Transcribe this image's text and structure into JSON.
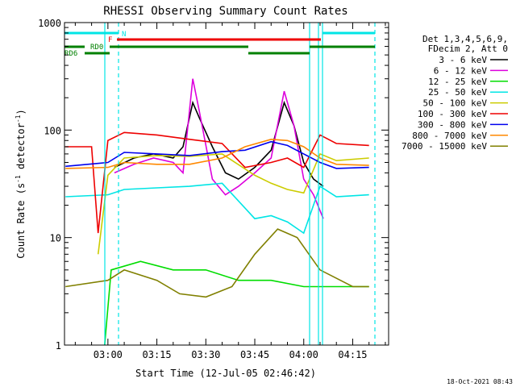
{
  "chart_data": {
    "type": "line",
    "title": "RHESSI Observing Summary Count Rates",
    "xlabel": "Start Time (12-Jul-05 02:46:42)",
    "ylabel_parts": [
      "Count Rate (s",
      "-1",
      " detector",
      "-1",
      ")"
    ],
    "yscale": "log",
    "ylim": [
      1,
      1000
    ],
    "xlim": [
      "02:46:42",
      "04:26:00"
    ],
    "y_ticks": [
      "1",
      "10",
      "100",
      "1000"
    ],
    "x_ticks": [
      "03:00",
      "03:15",
      "03:30",
      "03:45",
      "04:00",
      "04:15"
    ],
    "grid": false,
    "legend_position": "right",
    "legend_header": [
      "Det 1,3,4,5,6,9,",
      "FDecim 2, Att 0"
    ],
    "series": [
      {
        "name": "3 - 6 keV",
        "color": "#000000",
        "points": [
          [
            "03:02",
            45
          ],
          [
            "03:08",
            55
          ],
          [
            "03:14",
            60
          ],
          [
            "03:20",
            55
          ],
          [
            "03:23",
            70
          ],
          [
            "03:26",
            180
          ],
          [
            "03:28",
            130
          ],
          [
            "03:32",
            70
          ],
          [
            "03:36",
            40
          ],
          [
            "03:40",
            35
          ],
          [
            "03:45",
            45
          ],
          [
            "03:50",
            65
          ],
          [
            "03:54",
            180
          ],
          [
            "03:57",
            110
          ],
          [
            "04:00",
            50
          ],
          [
            "04:03",
            35
          ],
          [
            "04:06",
            30
          ]
        ]
      },
      {
        "name": "6 - 12 keV",
        "color": "#dd00dd",
        "points": [
          [
            "03:02",
            40
          ],
          [
            "03:08",
            48
          ],
          [
            "03:14",
            55
          ],
          [
            "03:20",
            50
          ],
          [
            "03:23",
            40
          ],
          [
            "03:26",
            300
          ],
          [
            "03:28",
            150
          ],
          [
            "03:32",
            35
          ],
          [
            "03:36",
            25
          ],
          [
            "03:40",
            30
          ],
          [
            "03:45",
            40
          ],
          [
            "03:50",
            55
          ],
          [
            "03:54",
            230
          ],
          [
            "03:57",
            110
          ],
          [
            "04:00",
            35
          ],
          [
            "04:03",
            25
          ],
          [
            "04:06",
            15
          ]
        ]
      },
      {
        "name": "12 - 25 keV",
        "color": "#00dd00",
        "points": [
          [
            "02:59",
            1
          ],
          [
            "03:01",
            5
          ],
          [
            "03:10",
            6
          ],
          [
            "03:20",
            5
          ],
          [
            "03:30",
            5
          ],
          [
            "03:40",
            4
          ],
          [
            "03:50",
            4
          ],
          [
            "04:00",
            3.5
          ],
          [
            "04:10",
            3.5
          ],
          [
            "04:20",
            3.5
          ]
        ]
      },
      {
        "name": "25 - 50 keV",
        "color": "#00e5e5",
        "points": [
          [
            "02:47",
            24
          ],
          [
            "03:00",
            25
          ],
          [
            "03:05",
            28
          ],
          [
            "03:15",
            29
          ],
          [
            "03:25",
            30
          ],
          [
            "03:35",
            32
          ],
          [
            "03:45",
            15
          ],
          [
            "03:50",
            16
          ],
          [
            "03:55",
            14
          ],
          [
            "04:00",
            11
          ],
          [
            "04:05",
            30
          ],
          [
            "04:10",
            24
          ],
          [
            "04:20",
            25
          ]
        ]
      },
      {
        "name": "50 - 100 keV",
        "color": "#cccc00",
        "points": [
          [
            "02:57",
            7
          ],
          [
            "03:00",
            38
          ],
          [
            "03:05",
            55
          ],
          [
            "03:15",
            58
          ],
          [
            "03:25",
            57
          ],
          [
            "03:35",
            60
          ],
          [
            "03:45",
            38
          ],
          [
            "03:50",
            32
          ],
          [
            "03:55",
            28
          ],
          [
            "04:00",
            26
          ],
          [
            "04:05",
            60
          ],
          [
            "04:10",
            52
          ],
          [
            "04:20",
            55
          ]
        ]
      },
      {
        "name": "100 - 300 keV",
        "color": "#ee0000",
        "points": [
          [
            "02:47",
            70
          ],
          [
            "02:55",
            70
          ],
          [
            "02:57",
            11
          ],
          [
            "03:00",
            80
          ],
          [
            "03:05",
            95
          ],
          [
            "03:15",
            90
          ],
          [
            "03:25",
            82
          ],
          [
            "03:35",
            75
          ],
          [
            "03:42",
            45
          ],
          [
            "03:50",
            50
          ],
          [
            "03:55",
            55
          ],
          [
            "04:00",
            45
          ],
          [
            "04:05",
            90
          ],
          [
            "04:10",
            75
          ],
          [
            "04:20",
            72
          ]
        ]
      },
      {
        "name": "300 - 800 keV",
        "color": "#0000ee",
        "points": [
          [
            "02:47",
            46
          ],
          [
            "03:00",
            50
          ],
          [
            "03:05",
            62
          ],
          [
            "03:15",
            60
          ],
          [
            "03:25",
            58
          ],
          [
            "03:35",
            63
          ],
          [
            "03:42",
            65
          ],
          [
            "03:50",
            78
          ],
          [
            "03:55",
            72
          ],
          [
            "04:00",
            60
          ],
          [
            "04:05",
            50
          ],
          [
            "04:10",
            44
          ],
          [
            "04:20",
            45
          ]
        ]
      },
      {
        "name": "800 - 7000 keV",
        "color": "#ff8800",
        "points": [
          [
            "02:47",
            44
          ],
          [
            "03:00",
            45
          ],
          [
            "03:05",
            50
          ],
          [
            "03:15",
            48
          ],
          [
            "03:25",
            48
          ],
          [
            "03:35",
            55
          ],
          [
            "03:42",
            70
          ],
          [
            "03:50",
            82
          ],
          [
            "03:55",
            80
          ],
          [
            "04:00",
            70
          ],
          [
            "04:05",
            55
          ],
          [
            "04:10",
            48
          ],
          [
            "04:20",
            47
          ]
        ]
      },
      {
        "name": "7000 - 15000 keV",
        "color": "#808000",
        "points": [
          [
            "02:47",
            3.5
          ],
          [
            "03:00",
            4
          ],
          [
            "03:05",
            5
          ],
          [
            "03:15",
            4
          ],
          [
            "03:22",
            3
          ],
          [
            "03:30",
            2.8
          ],
          [
            "03:38",
            3.5
          ],
          [
            "03:45",
            7
          ],
          [
            "03:52",
            12
          ],
          [
            "03:58",
            10
          ],
          [
            "04:05",
            5
          ],
          [
            "04:15",
            3.5
          ],
          [
            "04:20",
            3.5
          ]
        ]
      }
    ],
    "flag_bars": [
      {
        "name": "N",
        "color": "#00e5e5"
      },
      {
        "name": "F",
        "color": "#ee0000"
      },
      {
        "name": "RD0",
        "color": "#008000"
      },
      {
        "name": "RD6",
        "color": "#008000"
      }
    ],
    "footer_date": "18-Oct-2021 08:43"
  }
}
